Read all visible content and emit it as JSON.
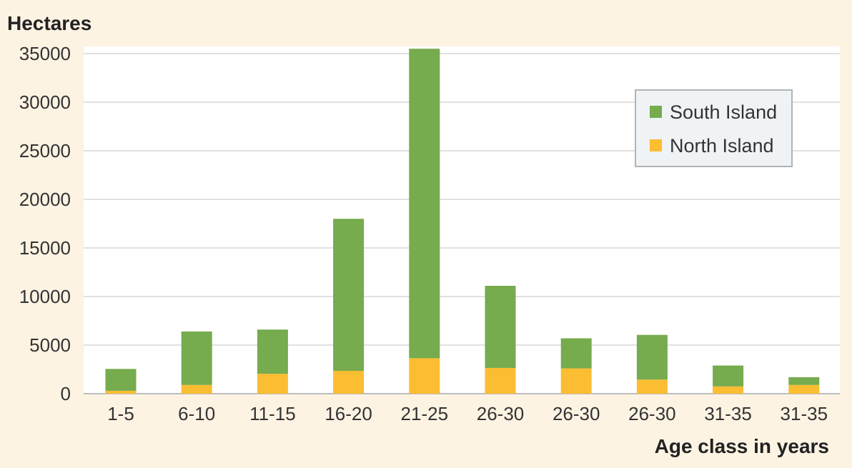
{
  "chart_data": {
    "type": "bar",
    "stacked": true,
    "ylabel": "Hectares",
    "xlabel": "Age class in years",
    "categories": [
      "1-5",
      "6-10",
      "11-15",
      "16-20",
      "21-25",
      "26-30",
      "26-30",
      "26-30",
      "31-35",
      "31-35"
    ],
    "series": [
      {
        "name": "North Island",
        "color": "#fbbd32",
        "values": [
          300,
          900,
          2050,
          2350,
          3650,
          2650,
          2600,
          1450,
          750,
          900
        ]
      },
      {
        "name": "South Island",
        "color": "#76ab4e",
        "values": [
          2250,
          5500,
          4550,
          15650,
          31850,
          8450,
          3100,
          4600,
          2150,
          800
        ]
      }
    ],
    "ylim": [
      0,
      35000
    ],
    "yticks": [
      0,
      5000,
      10000,
      15000,
      20000,
      25000,
      30000,
      35000
    ],
    "grid": true,
    "legend_position": "top-right",
    "legend_order": [
      "South Island",
      "North Island"
    ],
    "background_color": "#fdf3e3",
    "plot_background_color": "#ffffff",
    "grid_color": "#e1e1e1"
  }
}
